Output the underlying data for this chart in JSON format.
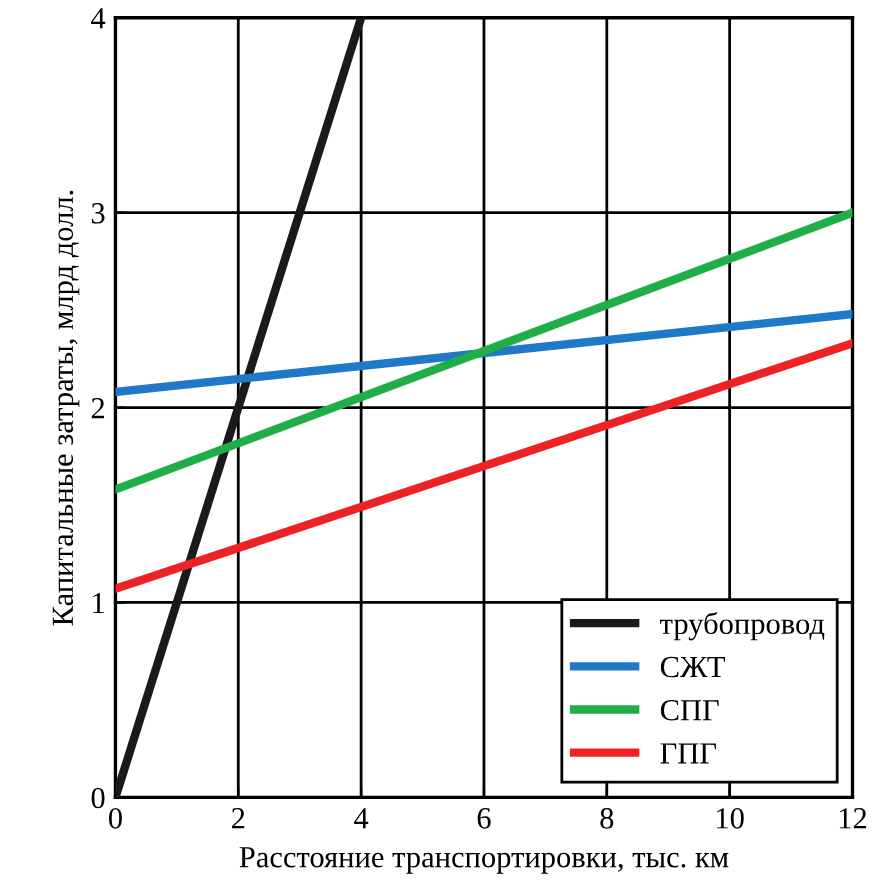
{
  "chart_data": {
    "type": "line",
    "xlabel": "Расстояние транспортировки, тыс. км",
    "ylabel": "Капитальные затраты, млрд долл.",
    "xlim": [
      0,
      12
    ],
    "ylim": [
      0,
      4
    ],
    "xticks": [
      0,
      2,
      4,
      6,
      8,
      10,
      12
    ],
    "yticks": [
      0,
      1,
      2,
      3,
      4
    ],
    "grid": true,
    "legend": "bottom right",
    "marker": "none",
    "line_style": "solid",
    "series": [
      {
        "name": "трубопровод",
        "color": "#1a1a1a",
        "x": [
          0,
          4
        ],
        "values": [
          0,
          4
        ]
      },
      {
        "name": "СЖТ",
        "color": "#1f78c8",
        "x": [
          0,
          12
        ],
        "values": [
          2.08,
          2.48
        ]
      },
      {
        "name": "СПГ",
        "color": "#1fae48",
        "x": [
          0,
          12
        ],
        "values": [
          1.58,
          3.0
        ]
      },
      {
        "name": "ГПГ",
        "color": "#ee2222",
        "x": [
          0,
          12
        ],
        "values": [
          1.07,
          2.33
        ]
      }
    ]
  }
}
